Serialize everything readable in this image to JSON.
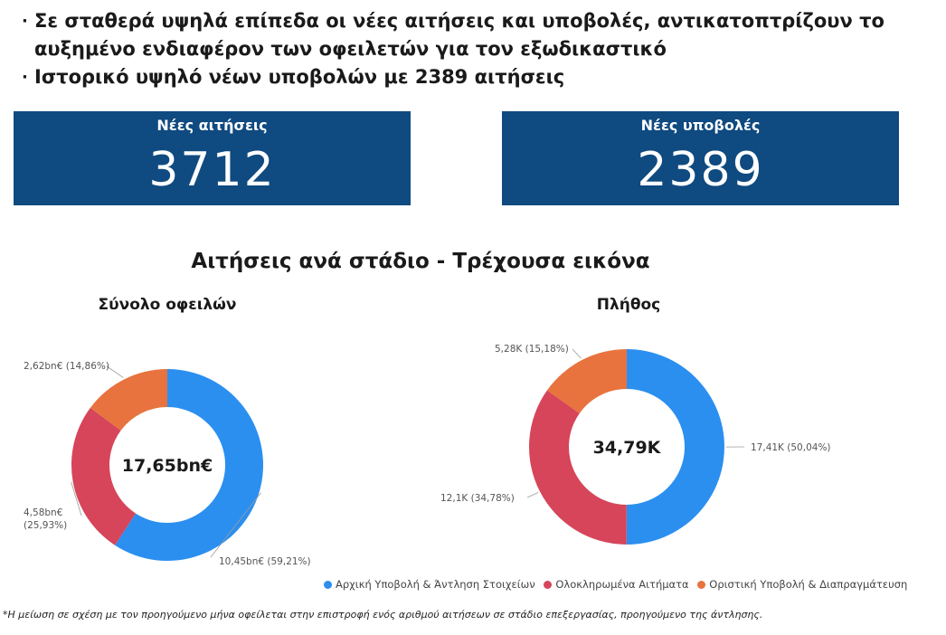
{
  "bullets": [
    "Σε σταθερά υψηλά επίπεδα οι νέες αιτήσεις και υποβολές, αντικατοπτρίζουν το",
    "αυξημένο ενδιαφέρον των οφειλετών για τον εξωδικαστικό",
    "Ιστορικό υψηλό νέων υποβολών με 2389 αιτήσεις"
  ],
  "kpis": [
    {
      "label": "Νέες αιτήσεις",
      "value": "3712"
    },
    {
      "label": "Νέες υποβολές",
      "value": "2389"
    }
  ],
  "colors": {
    "kpi_bg": "#0f4a80",
    "blue": "#2b8ff0",
    "red": "#d6455a",
    "orange": "#e8733f"
  },
  "chart_data": [
    {
      "type": "pie",
      "title": "Αιτήσεις ανά στάδιο - Τρέχουσα εικόνα",
      "subtitle": "Σύνολο οφειλών",
      "center_label": "17,65bn€",
      "categories": [
        "Αρχική Υποβολή & Άντληση Στοιχείων",
        "Ολοκληρωμένα Αιτήματα",
        "Οριστική Υποβολή & Διαπραγμάτευση"
      ],
      "values": [
        10.45,
        4.58,
        2.62
      ],
      "percent": [
        59.21,
        25.93,
        14.86
      ],
      "data_labels": [
        "10,45bn€ (59,21%)",
        "4,58bn€ (25,93%)",
        "2,62bn€ (14,86%)"
      ]
    },
    {
      "type": "pie",
      "title": "Αιτήσεις ανά στάδιο - Τρέχουσα εικόνα",
      "subtitle": "Πλήθος",
      "center_label": "34,79K",
      "categories": [
        "Αρχική Υποβολή & Άντληση Στοιχείων",
        "Ολοκληρωμένα Αιτήματα",
        "Οριστική Υποβολή & Διαπραγμάτευση"
      ],
      "values": [
        17.41,
        12.1,
        5.28
      ],
      "percent": [
        50.04,
        34.78,
        15.18
      ],
      "data_labels": [
        "17,41K (50,04%)",
        "12,1K (34,78%)",
        "5,28K (15,18%)"
      ]
    }
  ],
  "section_title": "Αιτήσεις ανά στάδιο - Τρέχουσα εικόνα",
  "legend": [
    {
      "label": "Αρχική Υποβολή & Άντληση Στοιχείων",
      "color": "#2b8ff0"
    },
    {
      "label": "Ολοκληρωμένα Αιτήματα",
      "color": "#d6455a"
    },
    {
      "label": "Οριστική Υποβολή & Διαπραγμάτευση",
      "color": "#e8733f"
    }
  ],
  "footnote": "*Η μείωση σε σχέση με τον προηγούμενο μήνα οφείλεται στην επιστροφή ενός αριθμού αιτήσεων σε στάδιο επεξεργασίας, προηγούμενο της άντλησης."
}
